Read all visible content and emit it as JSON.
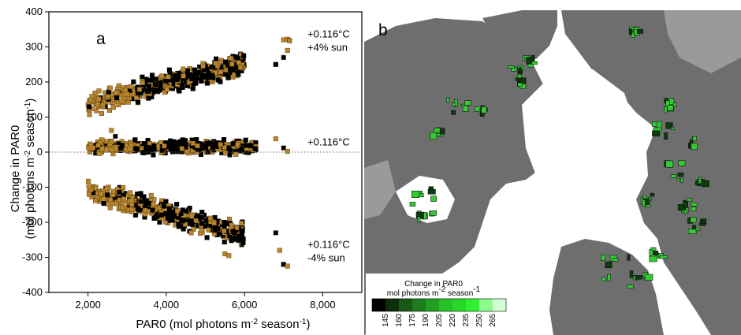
{
  "chart_data": [
    {
      "panel": "a",
      "type": "scatter",
      "xlabel_parts": [
        "PAR0 (mol photons m",
        "-2",
        " season",
        "-1",
        ")"
      ],
      "ylabel_line1": "Change in PAR0",
      "ylabel_line2_parts": [
        "(mol photons m",
        "-2",
        " season",
        "-1",
        ")"
      ],
      "xlim": [
        1000,
        9000
      ],
      "ylim": [
        -400,
        400
      ],
      "x_ticks": [
        2000,
        4000,
        6000,
        8000
      ],
      "x_tick_labels": [
        "2,000",
        "4,000",
        "6,000",
        "8,000"
      ],
      "y_ticks": [
        -400,
        -300,
        -200,
        -100,
        0,
        100,
        200,
        300,
        400
      ],
      "y_tick_labels": [
        "-400",
        "-300",
        "-200",
        "-100",
        "0",
        "100",
        "200",
        "300",
        "400"
      ],
      "reference_line_y": 0,
      "grid": false,
      "colors": {
        "series_black": "#000000",
        "series_gold": "#b8862e",
        "gold_edge": "#6b4a12"
      },
      "annotations": [
        {
          "lines": [
            "+0.116°C",
            "+4% sun"
          ],
          "anchor_y": 300
        },
        {
          "lines": [
            "+0.116°C"
          ],
          "anchor_y": 10
        },
        {
          "lines": [
            "+0.116°C",
            "-4% sun"
          ],
          "anchor_y": -300
        }
      ],
      "series": [
        {
          "group": "+0.116°C +4% sun",
          "trend": {
            "x": [
              2000,
              6000
            ],
            "y": [
              135,
              255
            ]
          },
          "spread": 22,
          "outliers": [
            [
              7000,
              320
            ],
            [
              7100,
              322
            ],
            [
              7150,
              318
            ],
            [
              7100,
              290
            ],
            [
              6800,
              250
            ],
            [
              7000,
              270
            ]
          ]
        },
        {
          "group": "+0.116°C",
          "trend": {
            "x": [
              2000,
              6300
            ],
            "y": [
              15,
              15
            ]
          },
          "spread": 14,
          "outliers": [
            [
              2600,
              62
            ],
            [
              2700,
              45
            ],
            [
              6800,
              38
            ],
            [
              7000,
              12
            ],
            [
              7100,
              2
            ]
          ]
        },
        {
          "group": "+0.116°C -4% sun",
          "trend": {
            "x": [
              2000,
              6000
            ],
            "y": [
              -110,
              -235
            ]
          },
          "spread": 22,
          "outliers": [
            [
              5500,
              -290
            ],
            [
              5600,
              -295
            ],
            [
              6800,
              -230
            ],
            [
              6900,
              -280
            ],
            [
              7000,
              -320
            ],
            [
              7100,
              -325
            ]
          ]
        }
      ]
    },
    {
      "panel": "b",
      "type": "heatmap",
      "legend_title_line1": "Change in PAR0",
      "legend_title_line2_parts": [
        "mol photons m",
        "-2",
        " season",
        "-1"
      ],
      "legend_ticks": [
        "145",
        "160",
        "175",
        "190",
        "205",
        "220",
        "235",
        "250",
        "265"
      ],
      "legend_colors": [
        "#000000",
        "#0b2e0b",
        "#155915",
        "#1c7d1c",
        "#22a022",
        "#26c126",
        "#27d827",
        "#30f030",
        "#8dfa8d",
        "#d5fdd5"
      ],
      "colors": {
        "land": "#6e6e6e",
        "land_light": "#9a9a9a",
        "ocean": "#ffffff",
        "forest_green": "#36c936"
      }
    }
  ],
  "panels": {
    "a_label": "a",
    "b_label": "b"
  }
}
